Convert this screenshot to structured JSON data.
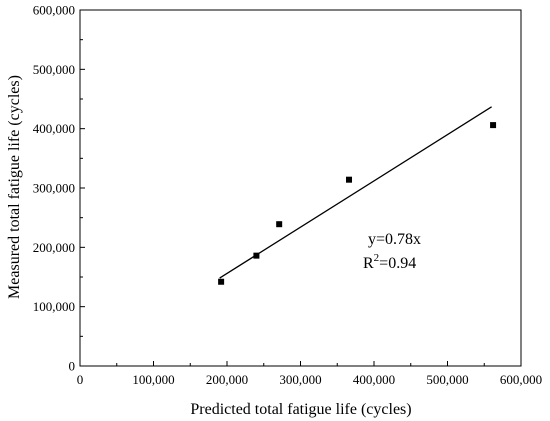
{
  "chart_data": {
    "type": "scatter",
    "title": "",
    "xlabel": "Predicted total fatigue life (cycles)",
    "ylabel": "Measured total fatigue life (cycles)",
    "xlim": [
      0,
      600000
    ],
    "ylim": [
      0,
      600000
    ],
    "x_ticks": [
      "0",
      "100,000",
      "200,000",
      "300,000",
      "400,000",
      "500,000",
      "600,000"
    ],
    "y_ticks": [
      "0",
      "100,000",
      "200,000",
      "300,000",
      "400,000",
      "500,000",
      "600,000"
    ],
    "grid": false,
    "legend": "none",
    "series": [
      {
        "marker": "square",
        "color": "#000000",
        "points": [
          {
            "x": 192000,
            "y": 142000
          },
          {
            "x": 240000,
            "y": 186000
          },
          {
            "x": 271000,
            "y": 239000
          },
          {
            "x": 366000,
            "y": 314000
          },
          {
            "x": 562000,
            "y": 406000
          }
        ]
      }
    ],
    "fit_line": {
      "slope": 0.78,
      "x_start": 190000,
      "x_end": 560000,
      "color": "#000000"
    },
    "annotations": {
      "equation": "y=0.78x",
      "r2_prefix": "R",
      "r2_sup": "2",
      "r2_value": "=0.94"
    }
  }
}
